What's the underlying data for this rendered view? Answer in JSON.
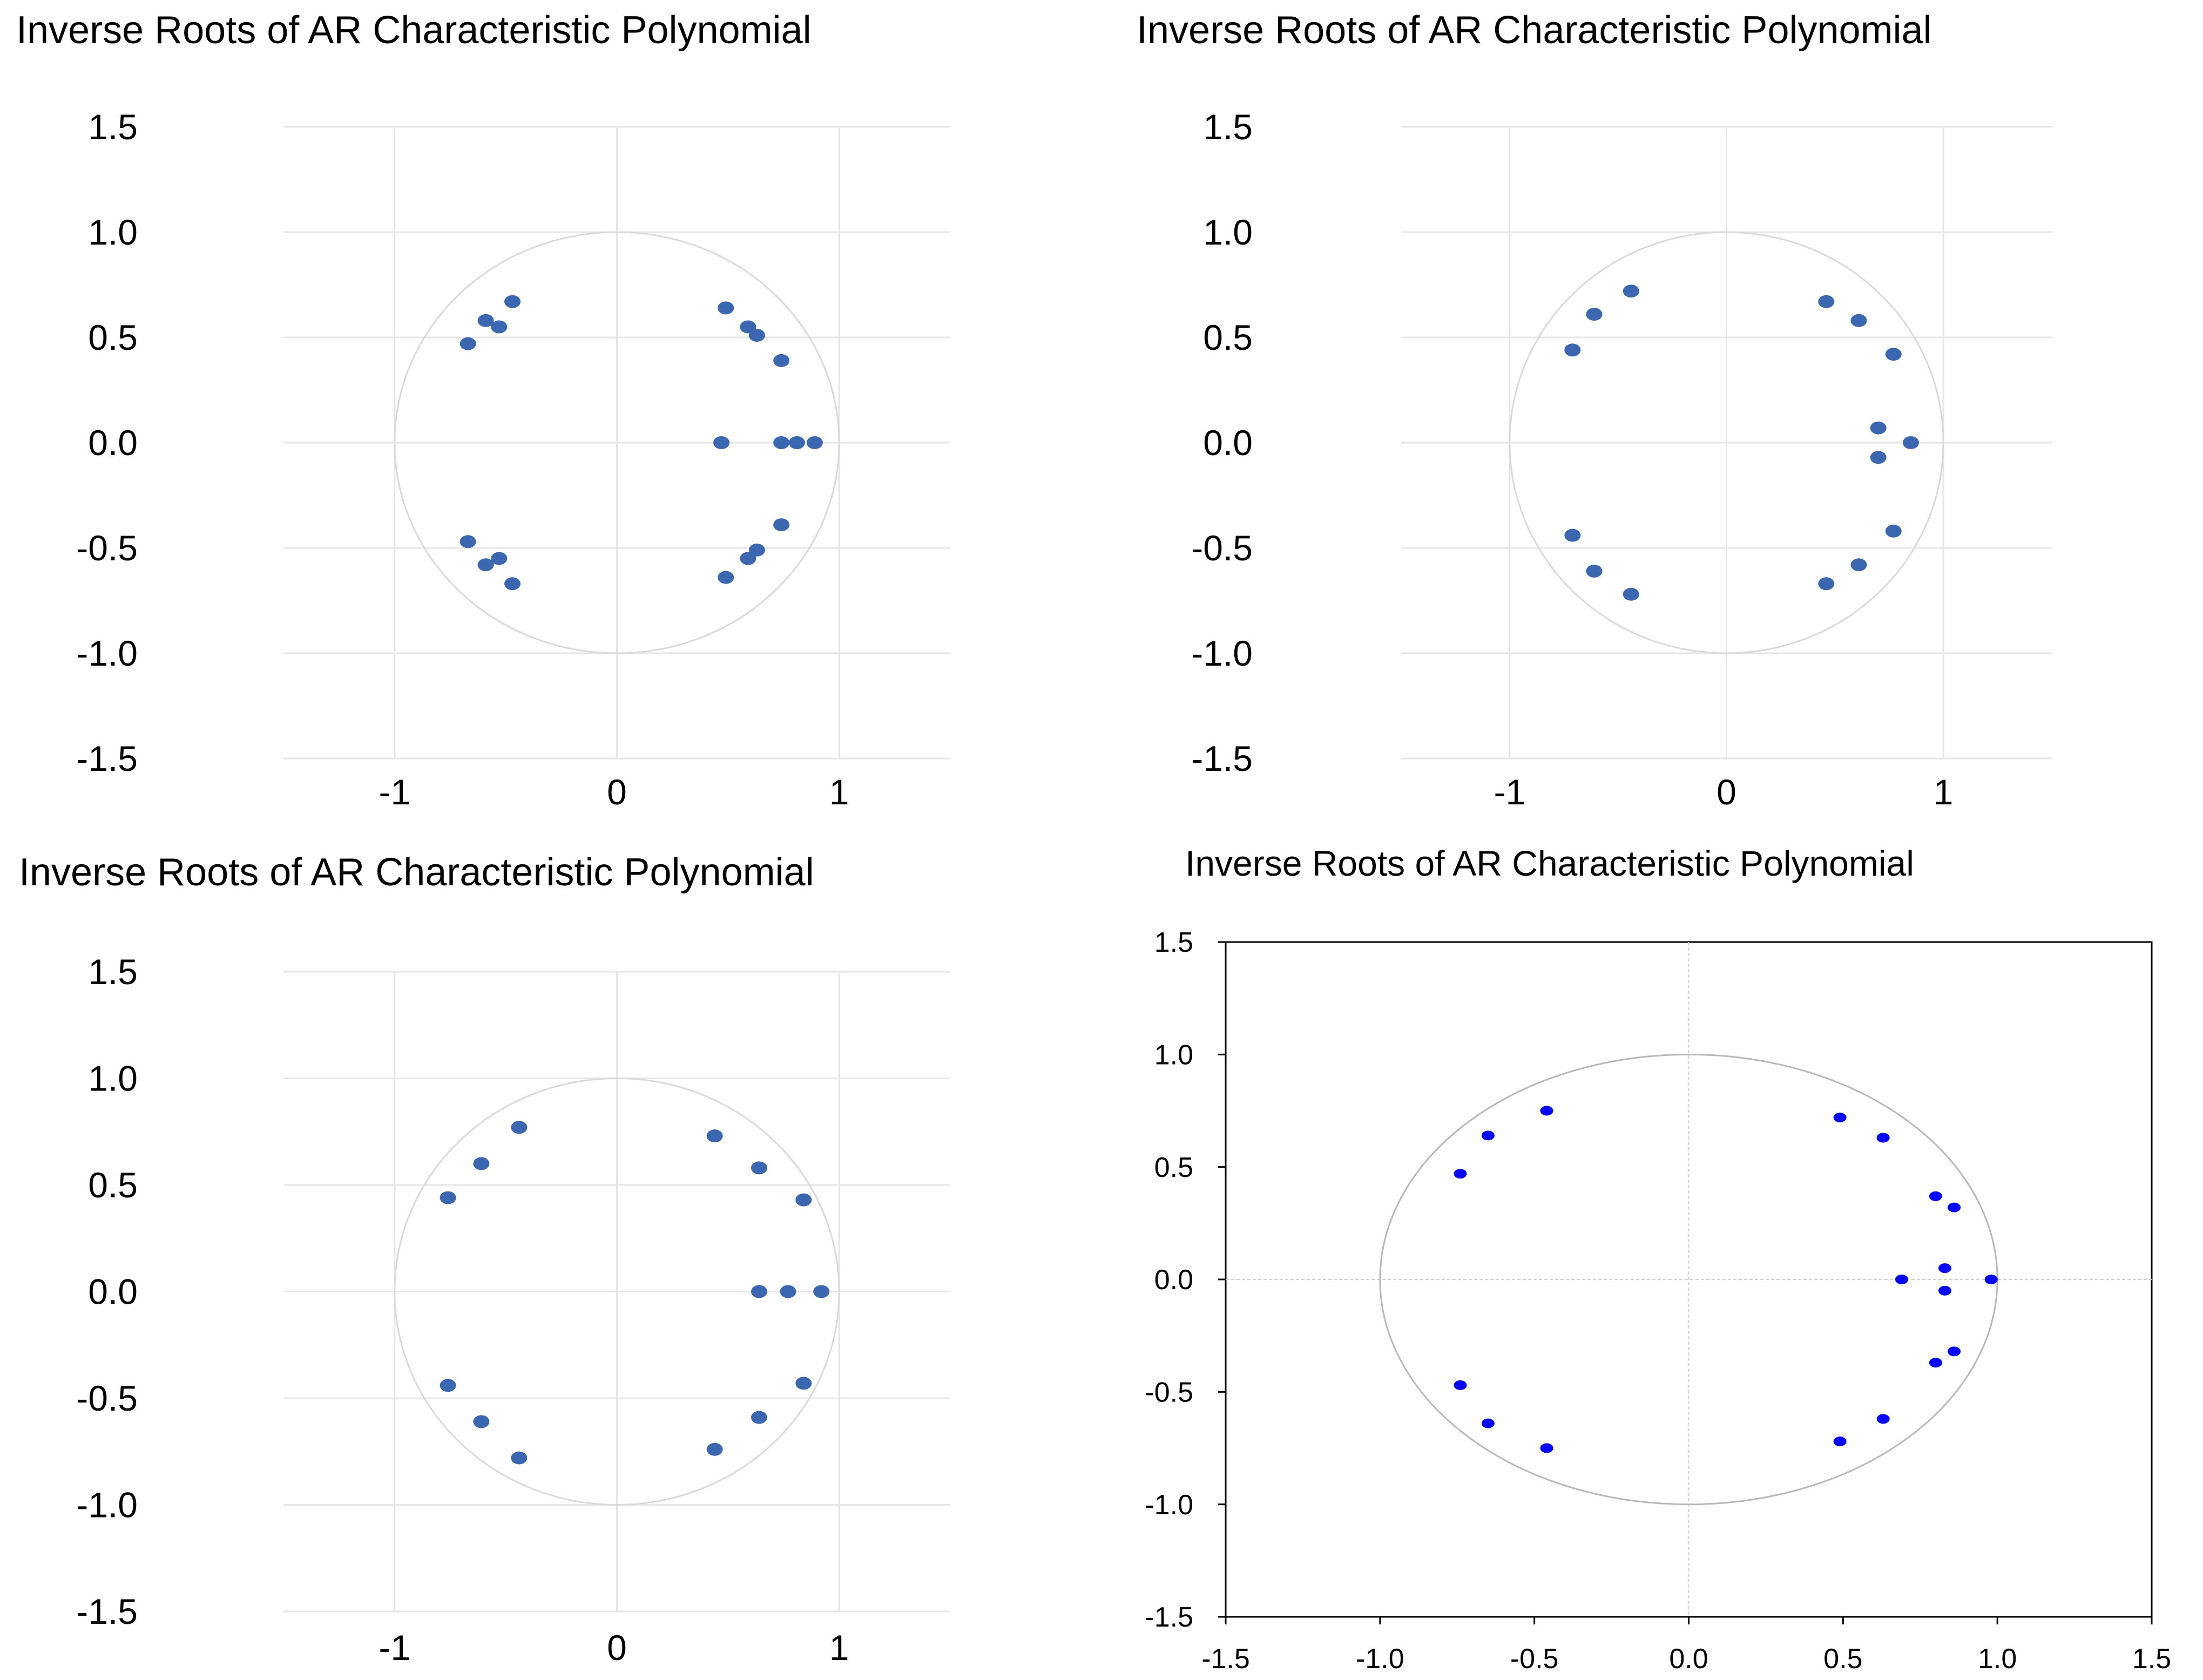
{
  "chart_data": [
    {
      "type": "scatter",
      "title": "Inverse Roots of AR Characteristic Polynomial",
      "xlim": [
        -1.5,
        1.5
      ],
      "ylim": [
        -1.5,
        1.5
      ],
      "xticks": [
        "-1",
        "0",
        "1"
      ],
      "xtick_values": [
        -1,
        0,
        1
      ],
      "yticks": [
        "1.5",
        "1.0",
        "0.5",
        "0.0",
        "-0.5",
        "-1.0",
        "-1.5"
      ],
      "ytick_values": [
        1.5,
        1.0,
        0.5,
        0.0,
        -0.5,
        -1.0,
        -1.5
      ],
      "grid": true,
      "unit_circle": true,
      "point_color": "#3a67b0",
      "points": [
        {
          "x": -0.67,
          "y": 0.47
        },
        {
          "x": -0.59,
          "y": 0.58
        },
        {
          "x": -0.53,
          "y": 0.55
        },
        {
          "x": -0.47,
          "y": 0.67
        },
        {
          "x": 0.49,
          "y": 0.64
        },
        {
          "x": 0.59,
          "y": 0.55
        },
        {
          "x": 0.63,
          "y": 0.51
        },
        {
          "x": 0.74,
          "y": 0.39
        },
        {
          "x": 0.47,
          "y": 0.0
        },
        {
          "x": 0.74,
          "y": 0.0
        },
        {
          "x": 0.81,
          "y": 0.0
        },
        {
          "x": 0.89,
          "y": 0.0
        },
        {
          "x": -0.67,
          "y": -0.47
        },
        {
          "x": -0.59,
          "y": -0.58
        },
        {
          "x": -0.53,
          "y": -0.55
        },
        {
          "x": -0.47,
          "y": -0.67
        },
        {
          "x": 0.49,
          "y": -0.64
        },
        {
          "x": 0.59,
          "y": -0.55
        },
        {
          "x": 0.63,
          "y": -0.51
        },
        {
          "x": 0.74,
          "y": -0.39
        }
      ]
    },
    {
      "type": "scatter",
      "title": "Inverse Roots of AR Characteristic Polynomial",
      "xlim": [
        -1.5,
        1.5
      ],
      "ylim": [
        -1.5,
        1.5
      ],
      "xticks": [
        "-1",
        "0",
        "1"
      ],
      "xtick_values": [
        -1,
        0,
        1
      ],
      "yticks": [
        "1.5",
        "1.0",
        "0.5",
        "0.0",
        "-0.5",
        "-1.0",
        "-1.5"
      ],
      "ytick_values": [
        1.5,
        1.0,
        0.5,
        0.0,
        -0.5,
        -1.0,
        -1.5
      ],
      "grid": true,
      "unit_circle": true,
      "point_color": "#3a67b0",
      "points": [
        {
          "x": -0.71,
          "y": 0.44
        },
        {
          "x": -0.61,
          "y": 0.61
        },
        {
          "x": -0.44,
          "y": 0.72
        },
        {
          "x": 0.46,
          "y": 0.67
        },
        {
          "x": 0.61,
          "y": 0.58
        },
        {
          "x": 0.77,
          "y": 0.42
        },
        {
          "x": 0.7,
          "y": 0.07
        },
        {
          "x": 0.7,
          "y": -0.07
        },
        {
          "x": 0.85,
          "y": 0.0
        },
        {
          "x": -0.71,
          "y": -0.44
        },
        {
          "x": -0.61,
          "y": -0.61
        },
        {
          "x": -0.44,
          "y": -0.72
        },
        {
          "x": 0.46,
          "y": -0.67
        },
        {
          "x": 0.61,
          "y": -0.58
        },
        {
          "x": 0.77,
          "y": -0.42
        }
      ]
    },
    {
      "type": "scatter",
      "title": "Inverse Roots of AR Characteristic Polynomial",
      "xlim": [
        -1.5,
        1.5
      ],
      "ylim": [
        -1.5,
        1.5
      ],
      "xticks": [
        "-1",
        "0",
        "1"
      ],
      "xtick_values": [
        -1,
        0,
        1
      ],
      "yticks": [
        "1.5",
        "1.0",
        "0.5",
        "0.0",
        "-0.5",
        "-1.0",
        "-1.5"
      ],
      "ytick_values": [
        1.5,
        1.0,
        0.5,
        0.0,
        -0.5,
        -1.0,
        -1.5
      ],
      "grid": true,
      "unit_circle": true,
      "point_color": "#3a67b0",
      "points": [
        {
          "x": -0.76,
          "y": 0.44
        },
        {
          "x": -0.61,
          "y": 0.6
        },
        {
          "x": -0.44,
          "y": 0.77
        },
        {
          "x": 0.44,
          "y": 0.73
        },
        {
          "x": 0.64,
          "y": 0.58
        },
        {
          "x": 0.84,
          "y": 0.43
        },
        {
          "x": 0.64,
          "y": 0.0
        },
        {
          "x": 0.77,
          "y": 0.0
        },
        {
          "x": 0.92,
          "y": 0.0
        },
        {
          "x": -0.76,
          "y": -0.44
        },
        {
          "x": -0.61,
          "y": -0.61
        },
        {
          "x": -0.44,
          "y": -0.78
        },
        {
          "x": 0.44,
          "y": -0.74
        },
        {
          "x": 0.64,
          "y": -0.59
        },
        {
          "x": 0.84,
          "y": -0.43
        }
      ]
    },
    {
      "type": "scatter",
      "title": "Inverse Roots of AR Characteristic Polynomial",
      "xlim": [
        -1.5,
        1.5
      ],
      "ylim": [
        -1.5,
        1.5
      ],
      "xticks": [
        "-1.5",
        "-1.0",
        "-0.5",
        "0.0",
        "0.5",
        "1.0",
        "1.5"
      ],
      "xtick_values": [
        -1.5,
        -1.0,
        -0.5,
        0.0,
        0.5,
        1.0,
        1.5
      ],
      "yticks": [
        "1.5",
        "1.0",
        "0.5",
        "0.0",
        "-0.5",
        "-1.0",
        "-1.5"
      ],
      "ytick_values": [
        1.5,
        1.0,
        0.5,
        0.0,
        -0.5,
        -1.0,
        -1.5
      ],
      "grid": false,
      "frame": true,
      "unit_circle": true,
      "point_color": "#0000ff",
      "points": [
        {
          "x": -0.74,
          "y": 0.47
        },
        {
          "x": -0.65,
          "y": 0.64
        },
        {
          "x": -0.46,
          "y": 0.75
        },
        {
          "x": 0.49,
          "y": 0.72
        },
        {
          "x": 0.63,
          "y": 0.63
        },
        {
          "x": 0.8,
          "y": 0.37
        },
        {
          "x": 0.86,
          "y": 0.32
        },
        {
          "x": 0.83,
          "y": 0.05
        },
        {
          "x": 0.69,
          "y": 0.0
        },
        {
          "x": 0.98,
          "y": 0.0
        },
        {
          "x": 0.83,
          "y": -0.05
        },
        {
          "x": -0.74,
          "y": -0.47
        },
        {
          "x": -0.65,
          "y": -0.64
        },
        {
          "x": -0.46,
          "y": -0.75
        },
        {
          "x": 0.49,
          "y": -0.72
        },
        {
          "x": 0.63,
          "y": -0.62
        },
        {
          "x": 0.8,
          "y": -0.37
        },
        {
          "x": 0.86,
          "y": -0.32
        }
      ]
    }
  ]
}
